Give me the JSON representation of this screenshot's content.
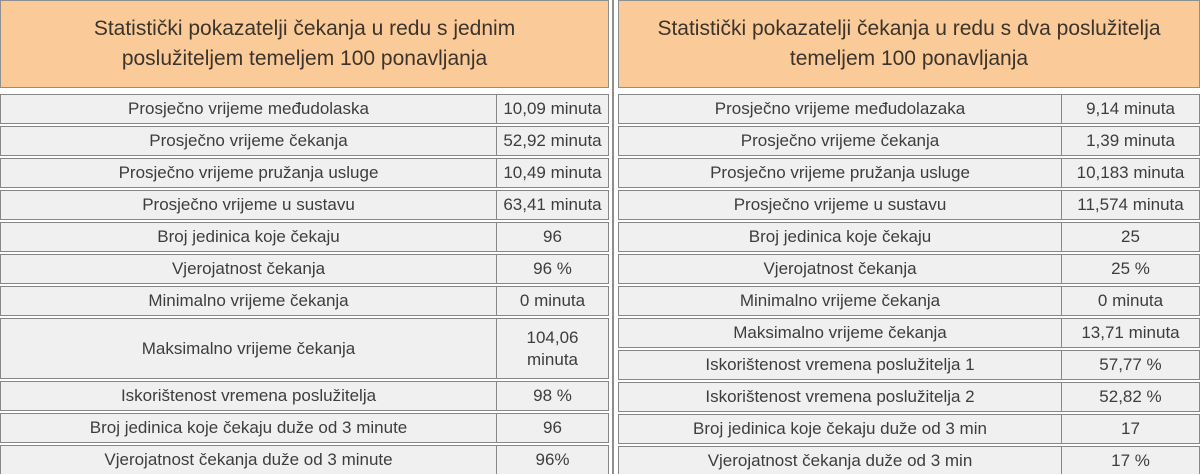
{
  "colors": {
    "header_bg": "#FACB98",
    "row_bg": "#F0F0F0",
    "border": "#878787",
    "text": "#3D3D3D",
    "divider": "#8F8F8F"
  },
  "left_table": {
    "title": "Statistički pokazatelji čekanja u redu s jednim poslužiteljem temeljem 100 ponavljanja",
    "rows": [
      {
        "label": "Prosječno vrijeme međudolaska",
        "value": "10,09 minuta"
      },
      {
        "label": "Prosječno vrijeme čekanja",
        "value": "52,92 minuta"
      },
      {
        "label": "Prosječno vrijeme pružanja usluge",
        "value": "10,49 minuta"
      },
      {
        "label": "Prosječno vrijeme u sustavu",
        "value": "63,41 minuta"
      },
      {
        "label": "Broj jedinica koje čekaju",
        "value": "96"
      },
      {
        "label": "Vjerojatnost čekanja",
        "value": "96 %"
      },
      {
        "label": "Minimalno vrijeme čekanja",
        "value": "0 minuta"
      },
      {
        "label": "Maksimalno vrijeme čekanja",
        "value": "104,06\nminuta",
        "tall": true
      },
      {
        "label": "Iskorištenost vremena poslužitelja",
        "value": "98 %"
      },
      {
        "label": "Broj jedinica koje čekaju duže od 3 minute",
        "value": "96"
      },
      {
        "label": "Vjerojatnost čekanja duže od 3 minute",
        "value": "96%"
      }
    ]
  },
  "right_table": {
    "title": "Statistički pokazatelji čekanja u redu s dva poslužitelja temeljem 100 ponavljanja",
    "rows": [
      {
        "label": "Prosječno vrijeme međudolazaka",
        "value": "9,14 minuta"
      },
      {
        "label": "Prosječno vrijeme čekanja",
        "value": "1,39 minuta"
      },
      {
        "label": "Prosječno vrijeme pružanja usluge",
        "value": "10,183 minuta"
      },
      {
        "label": "Prosječno vrijeme u sustavu",
        "value": "11,574 minuta"
      },
      {
        "label": "Broj jedinica koje čekaju",
        "value": "25"
      },
      {
        "label": "Vjerojatnost čekanja",
        "value": "25 %"
      },
      {
        "label": "Minimalno vrijeme čekanja",
        "value": "0 minuta"
      },
      {
        "label": "Maksimalno vrijeme čekanja",
        "value": "13,71 minuta"
      },
      {
        "label": "Iskorištenost vremena poslužitelja 1",
        "value": "57,77 %"
      },
      {
        "label": "Iskorištenost vremena poslužitelja 2",
        "value": "52,82 %"
      },
      {
        "label": "Broj jedinica koje čekaju duže od 3 min",
        "value": "17"
      },
      {
        "label": "Vjerojatnost čekanja duže od 3 min",
        "value": "17 %"
      }
    ]
  }
}
